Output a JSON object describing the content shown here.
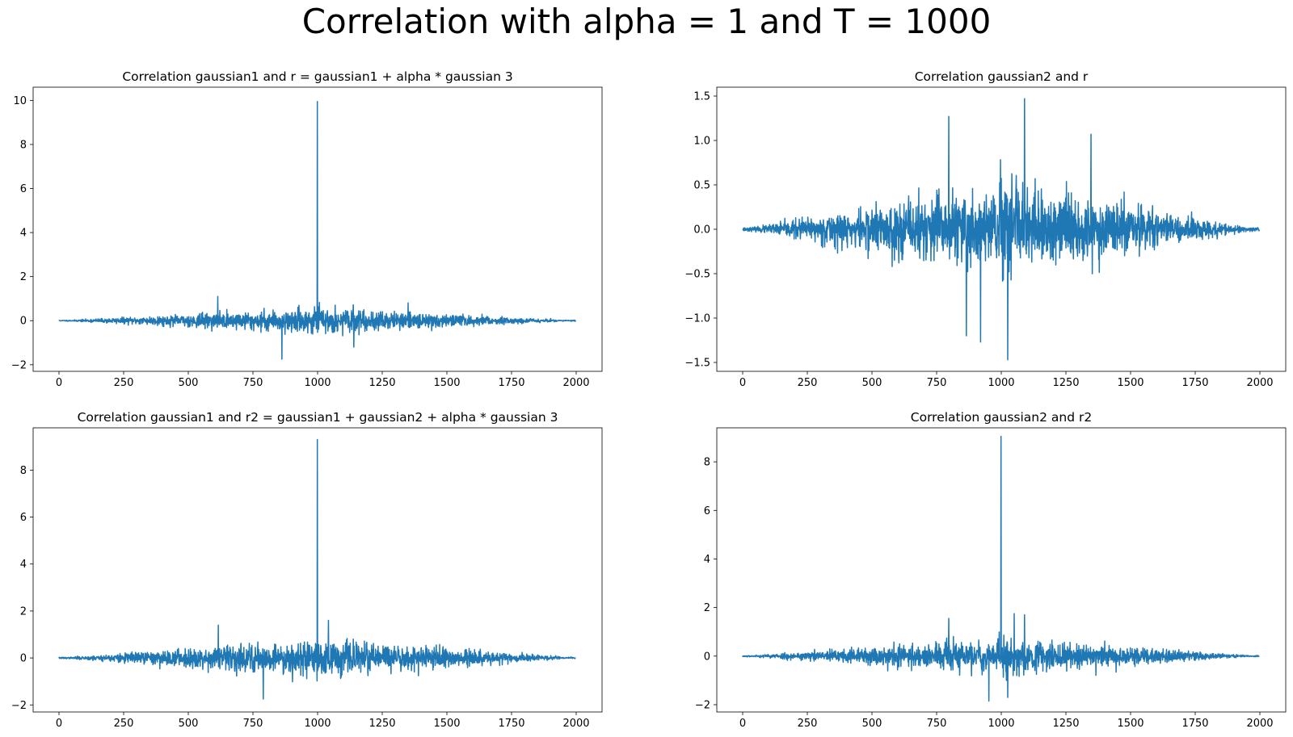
{
  "figure": {
    "title": "Correlation with alpha = 1 and T = 1000",
    "line_color": "#1f77b4"
  },
  "chart_data": [
    {
      "type": "line",
      "title": "Correlation gaussian1 and r = gaussian1 + alpha * gaussian 3",
      "xlabel": "",
      "ylabel": "",
      "xlim": [
        -100,
        2100
      ],
      "ylim": [
        -2.3,
        10.6
      ],
      "xticks": [
        0,
        250,
        500,
        750,
        1000,
        1250,
        1500,
        1750,
        2000
      ],
      "yticks": [
        -2,
        0,
        2,
        4,
        6,
        8,
        10
      ],
      "ytick_labels": [
        "−2",
        "0",
        "2",
        "4",
        "6",
        "8",
        "10"
      ],
      "n_points": 1999,
      "noise_peak": 0.6,
      "seed": 11,
      "spikes": [
        {
          "x": 999,
          "y": 9.95
        },
        {
          "x": 862,
          "y": -1.75
        },
        {
          "x": 614,
          "y": 1.1
        },
        {
          "x": 1140,
          "y": -1.2
        }
      ],
      "grid": false,
      "legend": "none"
    },
    {
      "type": "line",
      "title": "Correlation gaussian2 and r",
      "xlabel": "",
      "ylabel": "",
      "xlim": [
        -100,
        2100
      ],
      "ylim": [
        -1.6,
        1.6
      ],
      "xticks": [
        0,
        250,
        500,
        750,
        1000,
        1250,
        1500,
        1750,
        2000
      ],
      "yticks": [
        -1.5,
        -1.0,
        -0.5,
        0.0,
        0.5,
        1.0,
        1.5
      ],
      "ytick_labels": [
        "−1.5",
        "−1.0",
        "−0.5",
        "0.0",
        "0.5",
        "1.0",
        "1.5"
      ],
      "n_points": 1999,
      "noise_peak": 0.55,
      "seed": 23,
      "spikes": [
        {
          "x": 1090,
          "y": 1.47
        },
        {
          "x": 1025,
          "y": -1.47
        },
        {
          "x": 797,
          "y": 1.27
        },
        {
          "x": 865,
          "y": -1.2
        },
        {
          "x": 1347,
          "y": 1.07
        },
        {
          "x": 920,
          "y": -1.27
        }
      ],
      "grid": false,
      "legend": "none"
    },
    {
      "type": "line",
      "title": "Correlation gaussian1 and r2 = gaussian1 + gaussian2 + alpha * gaussian 3",
      "xlabel": "",
      "ylabel": "",
      "xlim": [
        -100,
        2100
      ],
      "ylim": [
        -2.3,
        9.8
      ],
      "xticks": [
        0,
        250,
        500,
        750,
        1000,
        1250,
        1500,
        1750,
        2000
      ],
      "yticks": [
        -2,
        0,
        2,
        4,
        6,
        8
      ],
      "ytick_labels": [
        "−2",
        "0",
        "2",
        "4",
        "6",
        "8"
      ],
      "n_points": 1999,
      "noise_peak": 0.85,
      "seed": 37,
      "spikes": [
        {
          "x": 999,
          "y": 9.3
        },
        {
          "x": 790,
          "y": -1.75
        },
        {
          "x": 616,
          "y": 1.4
        },
        {
          "x": 1042,
          "y": 1.6
        }
      ],
      "grid": false,
      "legend": "none"
    },
    {
      "type": "line",
      "title": "Correlation gaussian2 and r2",
      "xlabel": "",
      "ylabel": "",
      "xlim": [
        -100,
        2100
      ],
      "ylim": [
        -2.3,
        9.4
      ],
      "xticks": [
        0,
        250,
        500,
        750,
        1000,
        1250,
        1500,
        1750,
        2000
      ],
      "yticks": [
        -2,
        0,
        2,
        4,
        6,
        8
      ],
      "ytick_labels": [
        "−2",
        "0",
        "2",
        "4",
        "6",
        "8"
      ],
      "n_points": 1999,
      "noise_peak": 0.8,
      "seed": 53,
      "spikes": [
        {
          "x": 999,
          "y": 9.05
        },
        {
          "x": 1025,
          "y": -1.7
        },
        {
          "x": 1050,
          "y": 1.75
        },
        {
          "x": 952,
          "y": -1.85
        },
        {
          "x": 797,
          "y": 1.55
        },
        {
          "x": 1090,
          "y": 1.7
        }
      ],
      "grid": false,
      "legend": "none"
    }
  ]
}
